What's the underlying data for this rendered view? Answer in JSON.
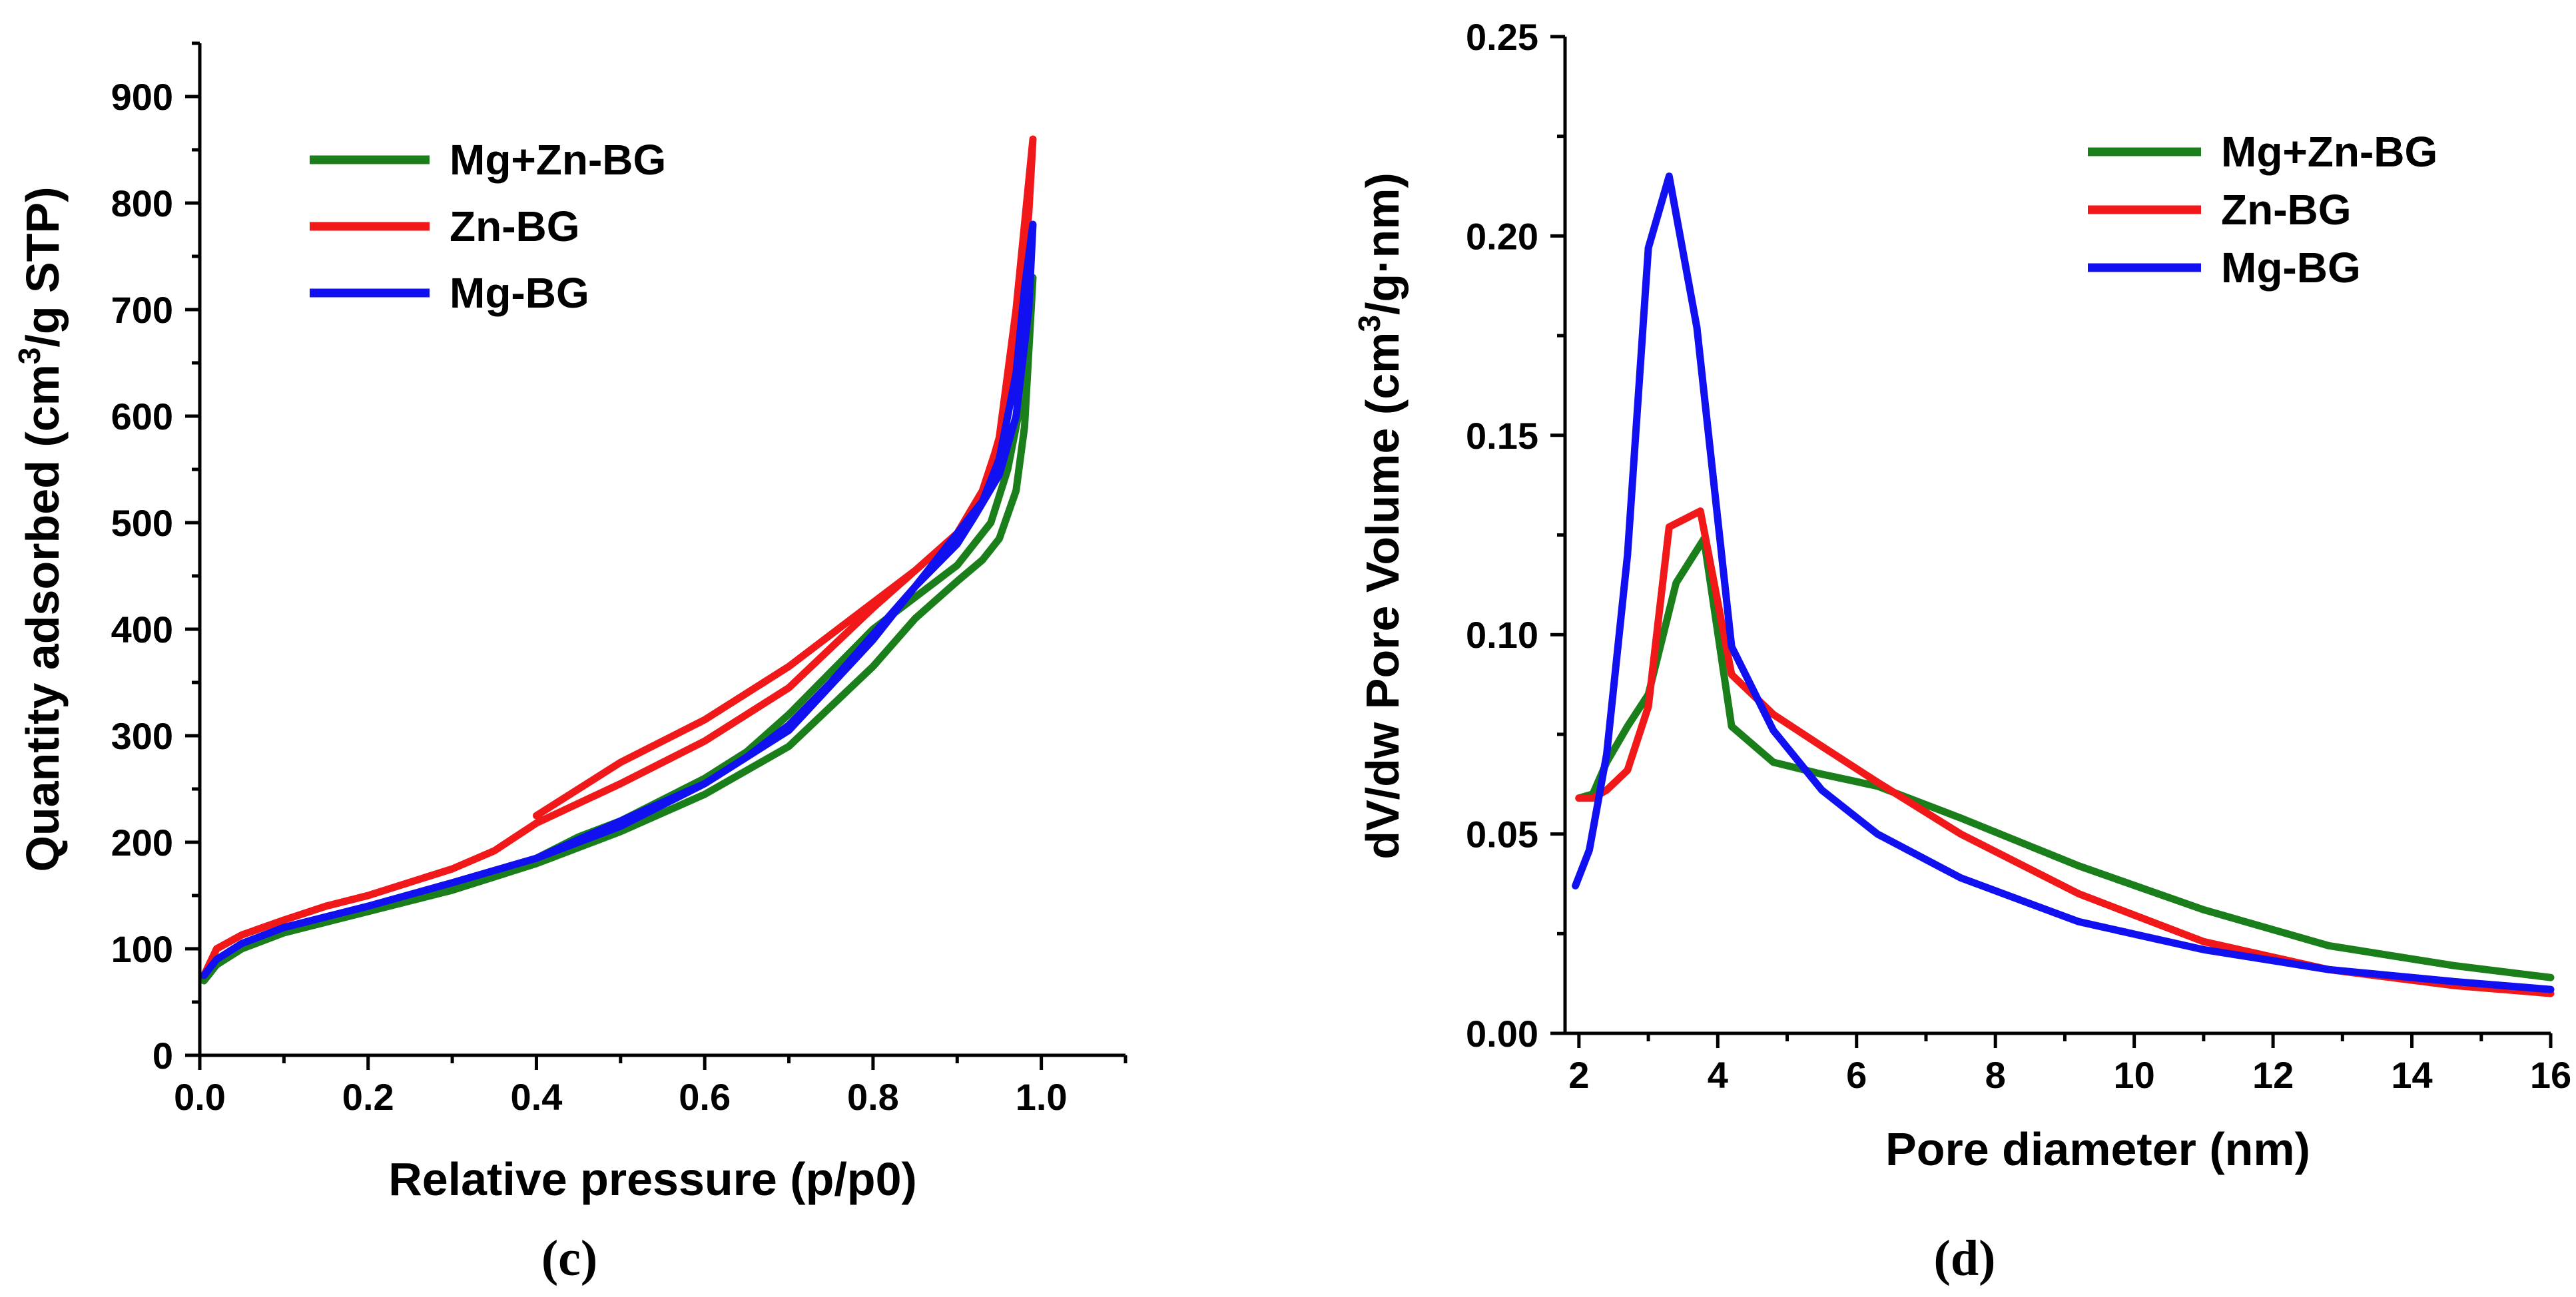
{
  "chart_data": [
    {
      "type": "line",
      "panel_label": "(c)",
      "xlabel": "Relative pressure (p/p0)",
      "ylabel_main": "Quantity adsorbed (cm",
      "ylabel_sup": "3",
      "ylabel_tail": "/g STP)",
      "xlim": [
        0,
        1.1
      ],
      "ylim": [
        0,
        950
      ],
      "xticks": [
        0.0,
        0.2,
        0.4,
        0.6,
        0.8,
        1.0
      ],
      "xtick_labels": [
        "0.0",
        "0.2",
        "0.4",
        "0.6",
        "0.8",
        "1.0"
      ],
      "yticks": [
        0,
        100,
        200,
        300,
        400,
        500,
        600,
        700,
        800,
        900
      ],
      "ytick_labels": [
        "0",
        "100",
        "200",
        "300",
        "400",
        "500",
        "600",
        "700",
        "800",
        "900"
      ],
      "legend": [
        "Mg+Zn-BG",
        "Zn-BG",
        "Mg-BG"
      ],
      "legend_position": "top-left",
      "series": [
        {
          "name": "Mg+Zn-BG",
          "color": "#1a7f1a",
          "x": [
            0.005,
            0.02,
            0.05,
            0.1,
            0.15,
            0.2,
            0.3,
            0.4,
            0.5,
            0.6,
            0.7,
            0.8,
            0.85,
            0.9,
            0.93,
            0.95,
            0.97,
            0.98,
            0.99,
            0.985,
            0.975,
            0.96,
            0.94,
            0.9,
            0.85,
            0.8,
            0.75,
            0.7,
            0.65,
            0.6,
            0.55,
            0.5,
            0.45,
            0.4
          ],
          "y": [
            70,
            85,
            100,
            115,
            125,
            135,
            155,
            180,
            210,
            245,
            290,
            365,
            410,
            445,
            465,
            485,
            530,
            590,
            730,
            680,
            610,
            550,
            500,
            460,
            430,
            400,
            360,
            320,
            285,
            260,
            240,
            220,
            205,
            185
          ]
        },
        {
          "name": "Zn-BG",
          "color": "#f01818",
          "x": [
            0.005,
            0.02,
            0.05,
            0.1,
            0.15,
            0.2,
            0.3,
            0.35,
            0.4,
            0.5,
            0.6,
            0.7,
            0.8,
            0.85,
            0.9,
            0.93,
            0.95,
            0.97,
            0.985,
            0.99,
            0.985,
            0.97,
            0.955,
            0.93,
            0.9,
            0.85,
            0.8,
            0.75,
            0.7,
            0.65,
            0.6,
            0.5,
            0.4
          ],
          "y": [
            75,
            100,
            113,
            127,
            140,
            150,
            175,
            192,
            218,
            255,
            295,
            345,
            420,
            455,
            490,
            525,
            580,
            700,
            820,
            860,
            790,
            680,
            590,
            530,
            490,
            455,
            425,
            395,
            365,
            340,
            315,
            275,
            225
          ]
        },
        {
          "name": "Mg-BG",
          "color": "#1010f0",
          "x": [
            0.005,
            0.02,
            0.05,
            0.1,
            0.15,
            0.2,
            0.3,
            0.4,
            0.5,
            0.6,
            0.7,
            0.8,
            0.85,
            0.9,
            0.93,
            0.95,
            0.97,
            0.98,
            0.99,
            0.985,
            0.97,
            0.95,
            0.92,
            0.9,
            0.85,
            0.8,
            0.75,
            0.7,
            0.65,
            0.6,
            0.55,
            0.5,
            0.45,
            0.4
          ],
          "y": [
            75,
            90,
            105,
            120,
            130,
            140,
            162,
            185,
            220,
            255,
            305,
            390,
            440,
            490,
            520,
            560,
            640,
            720,
            780,
            700,
            600,
            545,
            505,
            480,
            440,
            395,
            350,
            310,
            280,
            255,
            235,
            215,
            200,
            185
          ]
        }
      ]
    },
    {
      "type": "line",
      "panel_label": "(d)",
      "xlabel": "Pore diameter (nm)",
      "ylabel_main": "dV/dw Pore Volume (cm",
      "ylabel_sup": "3",
      "ylabel_tail": "/g·nm)",
      "xlim": [
        1.8,
        16
      ],
      "ylim": [
        0,
        0.25
      ],
      "xticks": [
        2,
        4,
        6,
        8,
        10,
        12,
        14,
        16
      ],
      "xtick_labels": [
        "2",
        "4",
        "6",
        "8",
        "10",
        "12",
        "14",
        "16"
      ],
      "yticks": [
        0.0,
        0.05,
        0.1,
        0.15,
        0.2,
        0.25
      ],
      "ytick_labels": [
        "0.00",
        "0.05",
        "0.10",
        "0.15",
        "0.20",
        "0.25"
      ],
      "legend": [
        "Mg+Zn-BG",
        "Zn-BG",
        "Mg-BG"
      ],
      "legend_position": "top-right",
      "series": [
        {
          "name": "Mg+Zn-BG",
          "color": "#1a7f1a",
          "x": [
            2.0,
            2.2,
            2.4,
            2.7,
            3.0,
            3.4,
            3.8,
            4.2,
            4.8,
            5.5,
            6.3,
            7.5,
            9.2,
            11.0,
            12.8,
            14.6,
            16.0
          ],
          "y": [
            0.059,
            0.06,
            0.068,
            0.077,
            0.085,
            0.113,
            0.124,
            0.077,
            0.068,
            0.065,
            0.062,
            0.054,
            0.042,
            0.031,
            0.022,
            0.017,
            0.014
          ]
        },
        {
          "name": "Zn-BG",
          "color": "#f01818",
          "x": [
            2.0,
            2.2,
            2.4,
            2.7,
            3.0,
            3.3,
            3.75,
            4.2,
            4.8,
            5.5,
            6.3,
            7.5,
            9.2,
            11.0,
            12.8,
            14.6,
            16.0
          ],
          "y": [
            0.059,
            0.059,
            0.061,
            0.066,
            0.082,
            0.127,
            0.131,
            0.09,
            0.08,
            0.072,
            0.063,
            0.05,
            0.035,
            0.023,
            0.016,
            0.012,
            0.01
          ]
        },
        {
          "name": "Mg-BG",
          "color": "#1010f0",
          "x": [
            1.95,
            2.15,
            2.4,
            2.7,
            3.0,
            3.3,
            3.7,
            4.2,
            4.8,
            5.5,
            6.3,
            7.5,
            9.2,
            11.0,
            12.8,
            14.6,
            16.0
          ],
          "y": [
            0.037,
            0.046,
            0.07,
            0.12,
            0.197,
            0.215,
            0.177,
            0.097,
            0.076,
            0.061,
            0.05,
            0.039,
            0.028,
            0.021,
            0.016,
            0.013,
            0.011
          ]
        }
      ]
    }
  ]
}
